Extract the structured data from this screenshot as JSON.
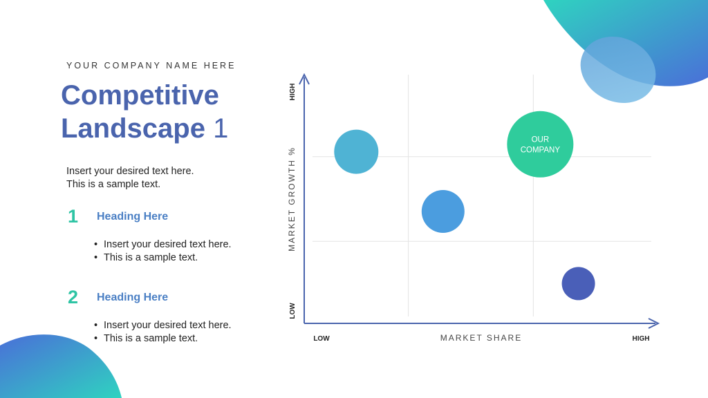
{
  "header": {
    "company_name": "YOUR COMPANY NAME HERE",
    "title_line1": "Competitive",
    "title_line2": "Landscape",
    "title_number": "1"
  },
  "intro": {
    "line1": "Insert your desired text here.",
    "line2": "This is a sample text."
  },
  "sections": [
    {
      "number": "1",
      "heading": "Heading Here",
      "bullets": [
        "Insert your desired text here.",
        "This is a sample text."
      ]
    },
    {
      "number": "2",
      "heading": "Heading Here",
      "bullets": [
        "Insert your desired text here.",
        "This is a sample text."
      ]
    }
  ],
  "colors": {
    "title": "#4a64ad",
    "accent_green": "#2ec4a4",
    "heading_blue": "#4a7fc4",
    "axis": "#4a64ad"
  },
  "chart_data": {
    "type": "scatter",
    "xlabel": "MARKET SHARE",
    "ylabel": "MARKET GROWTH %",
    "x_low_label": "LOW",
    "x_high_label": "HIGH",
    "y_low_label": "LOW",
    "y_high_label": "HIGH",
    "xlim": [
      0,
      10
    ],
    "ylim": [
      0,
      10
    ],
    "grid": true,
    "points": [
      {
        "x": 1.5,
        "y": 6.9,
        "size": 32,
        "color": "#4fb3d4",
        "label": ""
      },
      {
        "x": 4.0,
        "y": 4.5,
        "size": 31,
        "color": "#4b9ddf",
        "label": ""
      },
      {
        "x": 6.8,
        "y": 7.2,
        "size": 48,
        "color": "#2fcc9c",
        "label_lines": [
          "OUR",
          "COMPANY"
        ]
      },
      {
        "x": 7.9,
        "y": 1.6,
        "size": 24,
        "color": "#4a5fb8",
        "label": ""
      }
    ]
  }
}
